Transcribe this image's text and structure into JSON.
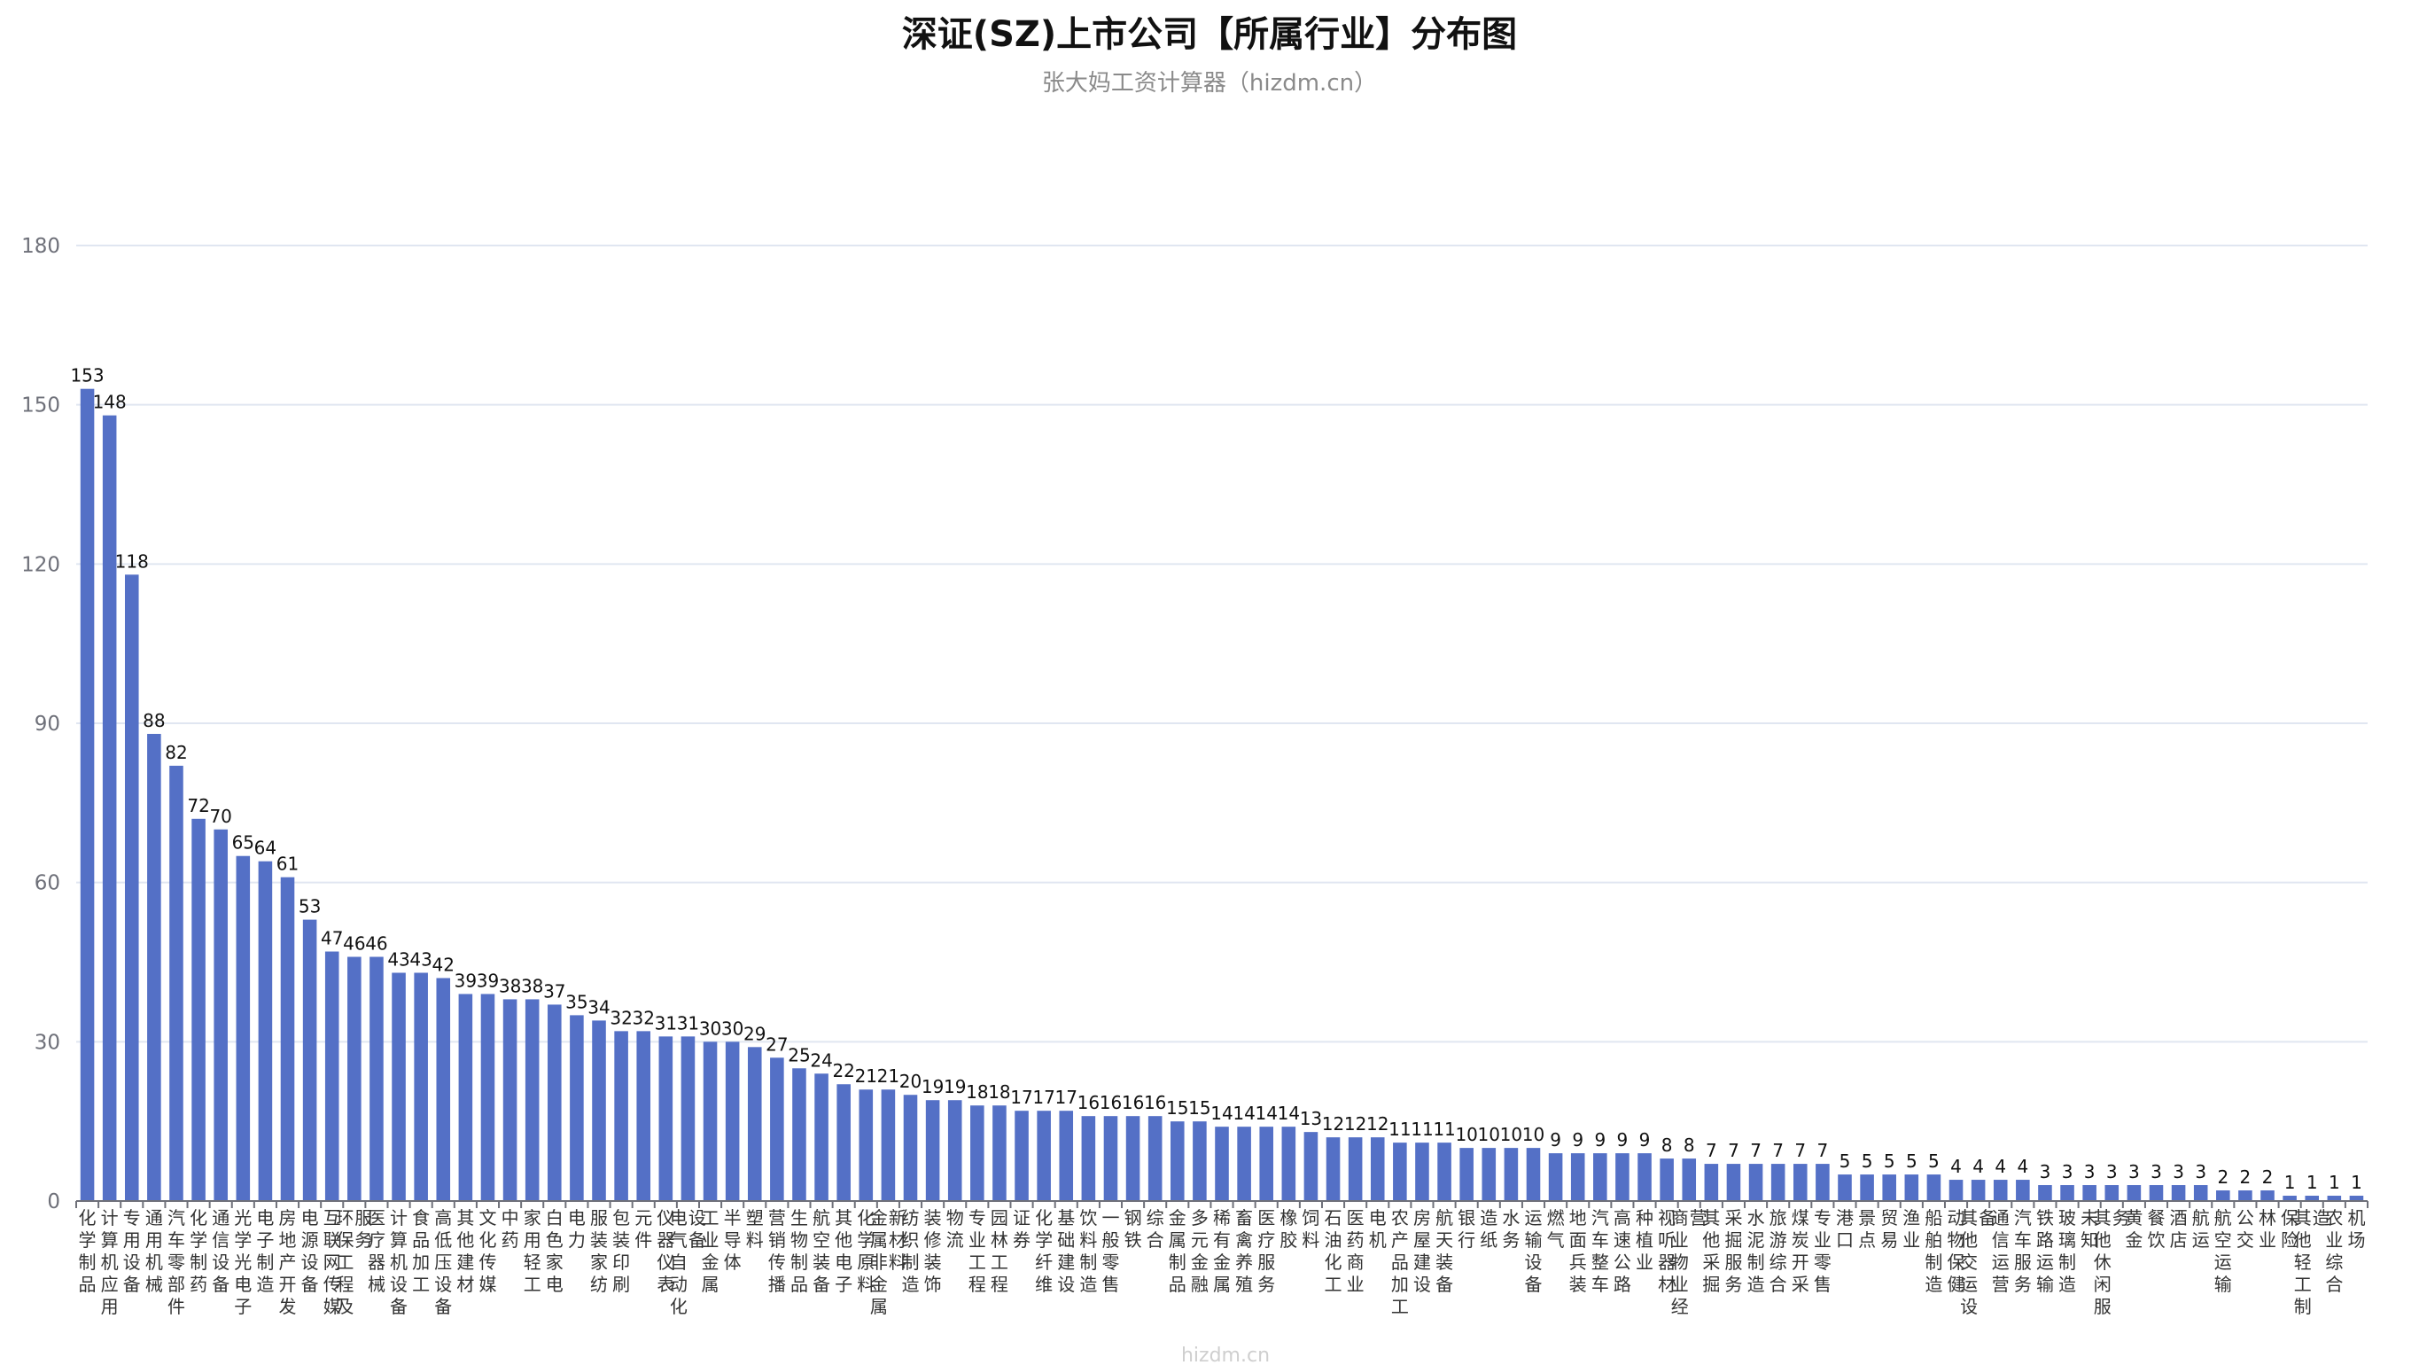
{
  "chart_data": {
    "type": "bar",
    "title": "深证(SZ)上市公司【所属行业】分布图",
    "subtitle": "张大妈工资计算器（hizdm.cn）",
    "watermark": "hizdm.cn",
    "ylim": [
      0,
      180
    ],
    "yticks": [
      0,
      30,
      60,
      90,
      120,
      150,
      180
    ],
    "grid": true,
    "color": "#5470c6",
    "categories": [
      "化学制品",
      "计算机应用",
      "专用设备",
      "通用机械",
      "汽车零部件",
      "化学制药",
      "通信设备",
      "光学光电子",
      "电子制造",
      "房地产开发",
      "电源设备",
      "互联网传媒",
      "环保工程及服务",
      "医疗器械",
      "计算机设备",
      "食品加工",
      "高低压设备",
      "其他建材",
      "文化传媒",
      "中药",
      "家用轻工",
      "白色家电",
      "电力",
      "服装家纺",
      "包装印刷",
      "元件",
      "仪器仪表",
      "电气自动化设备",
      "工业金属",
      "半导体",
      "塑料",
      "营销传播",
      "生物制品",
      "航空装备",
      "其他电子",
      "化学原料",
      "金属非金属新材料",
      "纺织制造",
      "装修装饰",
      "物流",
      "专业工程",
      "园林工程",
      "证券",
      "化学纤维",
      "基础建设",
      "饮料制造",
      "一般零售",
      "钢铁",
      "综合",
      "金属制品",
      "多元金融",
      "稀有金属",
      "畜禽养殖",
      "医疗服务",
      "橡胶",
      "饲料",
      "石油化工",
      "医药商业",
      "电机",
      "农产品加工",
      "房屋建设",
      "航天装备",
      "银行",
      "造纸",
      "水务",
      "运输设备",
      "燃气",
      "地面兵装",
      "汽车整车",
      "高速公路",
      "种植业",
      "视听器材",
      "商业物业经营",
      "其他采掘",
      "采掘服务",
      "水泥制造",
      "旅游综合",
      "煤炭开采",
      "专业零售",
      "港口",
      "景点",
      "贸易",
      "渔业",
      "船舶制造",
      "动物保健",
      "其他交运设备",
      "通信运营",
      "汽车服务",
      "铁路运输",
      "玻璃制造",
      "未知",
      "其他休闲服务",
      "黄金",
      "餐饮",
      "酒店",
      "航运",
      "航空运输",
      "公交",
      "林业",
      "保险",
      "其他轻工制造",
      "农业综合",
      "机场"
    ],
    "values": [
      153,
      148,
      118,
      88,
      82,
      72,
      70,
      65,
      64,
      61,
      53,
      47,
      46,
      46,
      43,
      43,
      42,
      39,
      39,
      38,
      38,
      37,
      35,
      34,
      32,
      32,
      31,
      31,
      30,
      30,
      29,
      27,
      25,
      24,
      22,
      21,
      21,
      20,
      19,
      19,
      18,
      18,
      17,
      17,
      17,
      16,
      16,
      16,
      16,
      15,
      15,
      14,
      14,
      14,
      14,
      13,
      12,
      12,
      12,
      11,
      11,
      11,
      10,
      10,
      10,
      10,
      9,
      9,
      9,
      9,
      9,
      8,
      8,
      7,
      7,
      7,
      7,
      7,
      7,
      5,
      5,
      5,
      5,
      5,
      4,
      4,
      4,
      4,
      3,
      3,
      3,
      3,
      3,
      3,
      3,
      3,
      2,
      2,
      2,
      1,
      1,
      1,
      1
    ]
  }
}
